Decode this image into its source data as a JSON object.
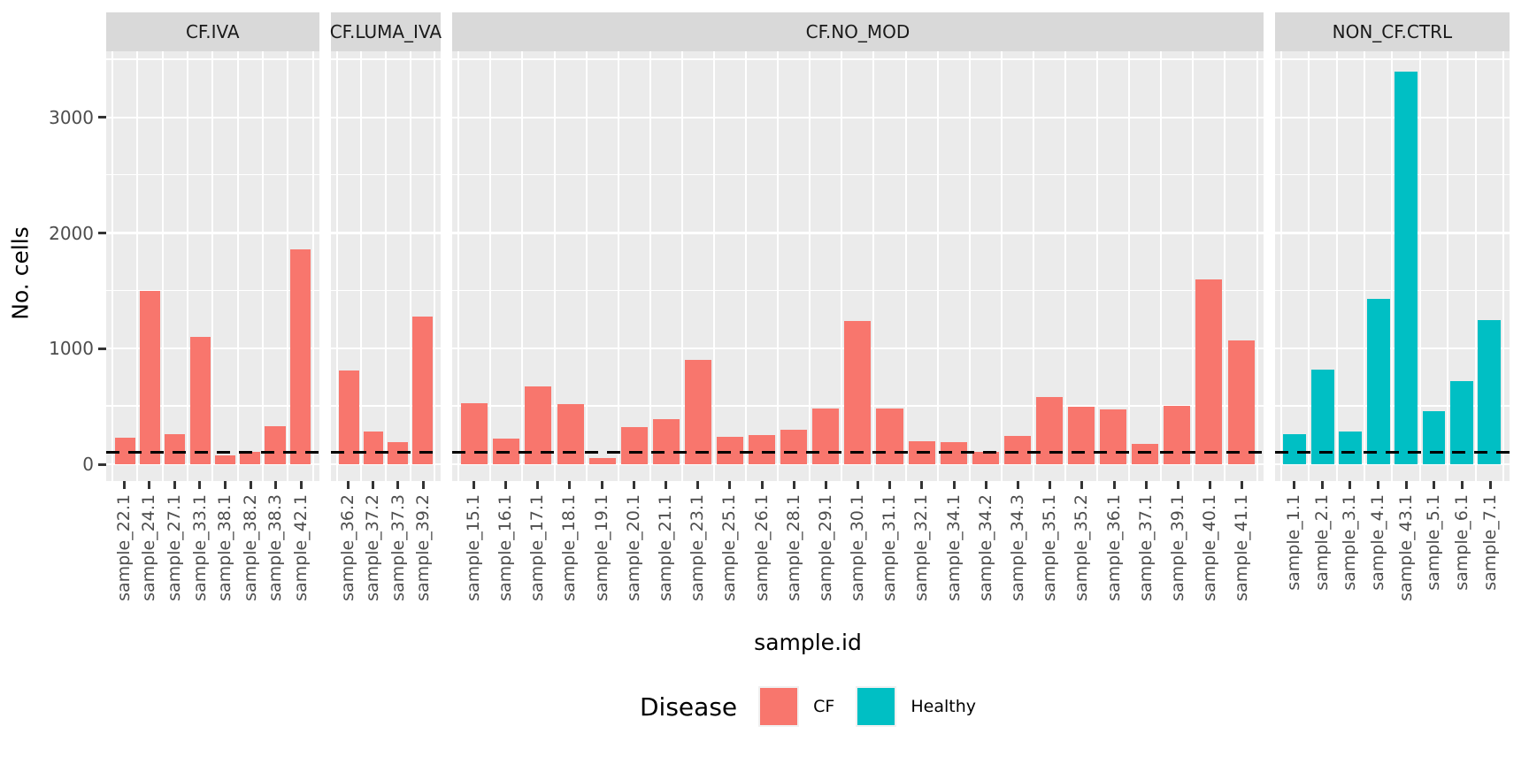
{
  "figure": {
    "y_axis_title": "No. cells",
    "x_axis_title": "sample.id"
  },
  "legend": {
    "title": "Disease",
    "items": [
      {
        "label": "CF",
        "color": "#F8766D"
      },
      {
        "label": "Healthy",
        "color": "#00BFC4"
      }
    ]
  },
  "colors": {
    "cf": "#F8766D",
    "healthy": "#00BFC4",
    "panel_background": "#EBEBEB",
    "strip_background": "#D9D9D9",
    "gridline": "#FFFFFF",
    "tick_text": "#4D4D4D",
    "threshold_line": "#000000"
  },
  "chart_data": {
    "type": "bar",
    "title": "",
    "xlabel": "sample.id",
    "ylabel": "No. cells",
    "ylim": [
      0,
      3580
    ],
    "yticks": [
      0,
      1000,
      2000,
      3000
    ],
    "yticks_minor": [
      500,
      1500,
      2500,
      3500
    ],
    "grid": "on",
    "legend_position": "bottom",
    "threshold_dashed_line_y": 100,
    "facets": [
      {
        "label": "CF.IVA",
        "group": "CF",
        "color": "#F8766D",
        "categories": [
          "sample_22.1",
          "sample_24.1",
          "sample_27.1",
          "sample_33.1",
          "sample_38.1",
          "sample_38.2",
          "sample_38.3",
          "sample_42.1"
        ],
        "values": [
          230,
          1500,
          260,
          1100,
          80,
          105,
          330,
          1860
        ]
      },
      {
        "label": "CF.LUMA_IVA",
        "group": "CF",
        "color": "#F8766D",
        "categories": [
          "sample_36.2",
          "sample_37.2",
          "sample_37.3",
          "sample_39.2"
        ],
        "values": [
          810,
          285,
          190,
          1280
        ]
      },
      {
        "label": "CF.NO_MOD",
        "group": "CF",
        "color": "#F8766D",
        "categories": [
          "sample_15.1",
          "sample_16.1",
          "sample_17.1",
          "sample_18.1",
          "sample_19.1",
          "sample_20.1",
          "sample_21.1",
          "sample_23.1",
          "sample_25.1",
          "sample_26.1",
          "sample_28.1",
          "sample_29.1",
          "sample_30.1",
          "sample_31.1",
          "sample_32.1",
          "sample_34.1",
          "sample_34.2",
          "sample_34.3",
          "sample_35.1",
          "sample_35.2",
          "sample_36.1",
          "sample_37.1",
          "sample_39.1",
          "sample_40.1",
          "sample_41.1"
        ],
        "values": [
          530,
          220,
          675,
          520,
          55,
          320,
          390,
          900,
          240,
          255,
          300,
          480,
          1240,
          480,
          200,
          190,
          110,
          245,
          580,
          500,
          475,
          175,
          505,
          1600,
          1075
        ]
      },
      {
        "label": "NON_CF.CTRL",
        "group": "Healthy",
        "color": "#00BFC4",
        "categories": [
          "sample_1.1",
          "sample_2.1",
          "sample_3.1",
          "sample_4.1",
          "sample_43.1",
          "sample_5.1",
          "sample_6.1",
          "sample_7.1"
        ],
        "values": [
          260,
          820,
          285,
          1430,
          3400,
          460,
          720,
          1250
        ]
      }
    ]
  }
}
